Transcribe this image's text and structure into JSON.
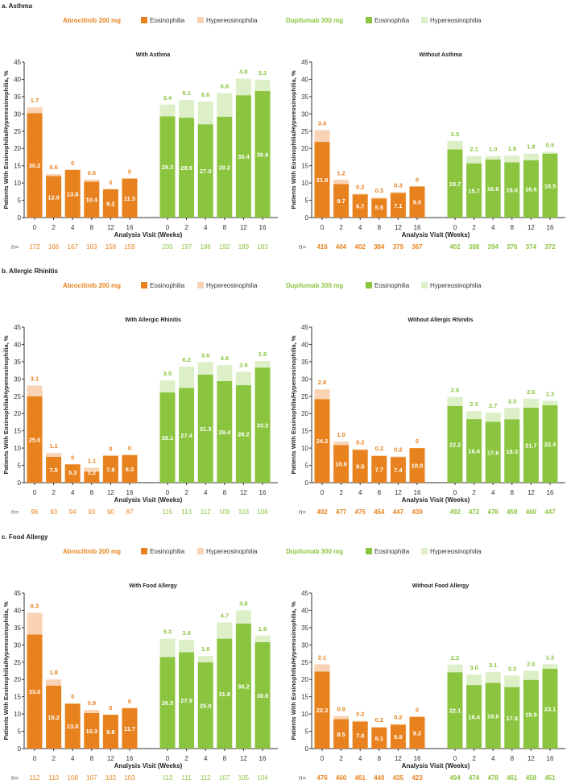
{
  "sections": [
    {
      "title": "a. Asthma"
    },
    {
      "title": "b. Allergic Rhinitis"
    },
    {
      "title": "c. Food Allergy"
    }
  ],
  "legend": {
    "abrocitinib": "Abrocitinib 200 mg",
    "dupilumab": "Dupilumab 300 mg",
    "eosinophilia": "Eosinophilia",
    "hypereosinophilia": "Hypereosinophilia"
  },
  "colors": {
    "abro_eos": "#E8821E",
    "abro_hyper": "#F9D3B4",
    "dupi_eos": "#8BC43F",
    "dupi_hyper": "#DDEFC7"
  },
  "chart_data": [
    {
      "type": "bar",
      "stacked": true,
      "title": "With Asthma",
      "xlabel": "Analysis Visit (Weeks)",
      "ylabel": "Patients With Eosinophilia/Hypereosinophilia, %",
      "ylim": [
        0,
        45
      ],
      "yticks": [
        0,
        5,
        10,
        15,
        20,
        25,
        30,
        35,
        40,
        45
      ],
      "categories": [
        "0",
        "2",
        "4",
        "8",
        "12",
        "16"
      ],
      "n_label": "n=",
      "series": [
        {
          "name": "Abrocitinib 200 mg",
          "eosinophilia": [
            30.2,
            12.0,
            13.8,
            10.4,
            8.2,
            11.3
          ],
          "hypereosinophilia": [
            1.7,
            0.6,
            0,
            0.6,
            0,
            0
          ],
          "n": [
            172,
            166,
            167,
            163,
            158,
            159
          ]
        },
        {
          "name": "Dupilumab 300 mg",
          "eosinophilia": [
            29.3,
            28.9,
            27.0,
            29.2,
            35.4,
            36.6
          ],
          "hypereosinophilia": [
            3.4,
            5.1,
            6.6,
            6.8,
            4.8,
            3.3
          ],
          "n": [
            205,
            197,
            196,
            192,
            189,
            183
          ]
        }
      ]
    },
    {
      "type": "bar",
      "stacked": true,
      "title": "Without Asthma",
      "xlabel": "Analysis Visit (Weeks)",
      "ylabel": "Patients With Eosinophilia/Hypereosinophilia, %",
      "ylim": [
        0,
        45
      ],
      "yticks": [
        0,
        5,
        10,
        15,
        20,
        25,
        30,
        35,
        40,
        45
      ],
      "categories": [
        "0",
        "2",
        "4",
        "8",
        "12",
        "16"
      ],
      "n_label": "n=",
      "series": [
        {
          "name": "Abrocitinib 200 mg",
          "eosinophilia": [
            21.9,
            9.7,
            6.7,
            5.5,
            7.1,
            9.0
          ],
          "hypereosinophilia": [
            3.4,
            1.2,
            0.2,
            0.3,
            0.3,
            0
          ],
          "n": [
            416,
            404,
            402,
            384,
            379,
            367
          ]
        },
        {
          "name": "Dupilumab 300 mg",
          "eosinophilia": [
            19.7,
            15.7,
            16.8,
            16.0,
            16.6,
            18.5
          ],
          "hypereosinophilia": [
            2.5,
            2.1,
            1.0,
            1.9,
            1.9,
            0.5
          ],
          "n": [
            402,
            388,
            394,
            376,
            374,
            372
          ]
        }
      ]
    },
    {
      "type": "bar",
      "stacked": true,
      "title": "With Allergic Rhinitis",
      "xlabel": "Analysis Visit (Weeks)",
      "ylabel": "Patients With Eosinophilia/Hypereosinophilia, %",
      "ylim": [
        0,
        45
      ],
      "yticks": [
        0,
        5,
        10,
        15,
        20,
        25,
        30,
        35,
        40,
        45
      ],
      "categories": [
        "0",
        "2",
        "4",
        "8",
        "12",
        "16"
      ],
      "n_label": "n=",
      "series": [
        {
          "name": "Abrocitinib 200 mg",
          "eosinophilia": [
            25.0,
            7.5,
            5.3,
            3.2,
            7.8,
            8.0
          ],
          "hypereosinophilia": [
            3.1,
            1.1,
            0,
            1.1,
            0,
            0
          ],
          "n": [
            96,
            93,
            94,
            93,
            90,
            87
          ]
        },
        {
          "name": "Dupilumab 300 mg",
          "eosinophilia": [
            26.1,
            27.4,
            31.3,
            29.4,
            28.2,
            33.3
          ],
          "hypereosinophilia": [
            3.5,
            6.2,
            3.6,
            4.6,
            3.9,
            1.9
          ],
          "n": [
            115,
            113,
            112,
            109,
            103,
            108
          ]
        }
      ]
    },
    {
      "type": "bar",
      "stacked": true,
      "title": "Without Allergic Rhinitis",
      "xlabel": "Analysis Visit (Weeks)",
      "ylabel": "Patients With Eosinophilia/Hypereosinophilia, %",
      "ylim": [
        0,
        45
      ],
      "yticks": [
        0,
        5,
        10,
        15,
        20,
        25,
        30,
        35,
        40,
        45
      ],
      "categories": [
        "0",
        "2",
        "4",
        "8",
        "12",
        "16"
      ],
      "n_label": "n=",
      "series": [
        {
          "name": "Abrocitinib 200 mg",
          "eosinophilia": [
            24.2,
            10.9,
            9.5,
            7.7,
            7.4,
            10.0
          ],
          "hypereosinophilia": [
            2.8,
            1.0,
            0.2,
            0.2,
            0.2,
            0
          ],
          "n": [
            492,
            477,
            475,
            454,
            447,
            439
          ]
        },
        {
          "name": "Dupilumab 300 mg",
          "eosinophilia": [
            22.2,
            18.4,
            17.6,
            18.3,
            21.7,
            22.4
          ],
          "hypereosinophilia": [
            2.6,
            2.3,
            2.7,
            3.3,
            2.6,
            1.3
          ],
          "n": [
            492,
            472,
            478,
            459,
            460,
            447
          ]
        }
      ]
    },
    {
      "type": "bar",
      "stacked": true,
      "title": "With Food Allergy",
      "xlabel": "Analysis Visit (Weeks)",
      "ylabel": "Patients With Eosinophilia/Hypereosinophilia, %",
      "ylim": [
        0,
        45
      ],
      "yticks": [
        0,
        5,
        10,
        15,
        20,
        25,
        30,
        35,
        40,
        45
      ],
      "categories": [
        "0",
        "2",
        "4",
        "8",
        "12",
        "16"
      ],
      "n_label": "n=",
      "series": [
        {
          "name": "Abrocitinib 200 mg",
          "eosinophilia": [
            33.0,
            18.2,
            13.0,
            10.3,
            9.8,
            11.7
          ],
          "hypereosinophilia": [
            6.3,
            1.8,
            0,
            0.9,
            0,
            0
          ],
          "n": [
            112,
            110,
            108,
            107,
            102,
            103
          ]
        },
        {
          "name": "Dupilumab 300 mg",
          "eosinophilia": [
            26.5,
            27.9,
            25.0,
            31.8,
            36.2,
            30.8
          ],
          "hypereosinophilia": [
            5.3,
            3.6,
            1.8,
            4.7,
            3.8,
            1.9
          ],
          "n": [
            113,
            111,
            112,
            107,
            105,
            104
          ]
        }
      ]
    },
    {
      "type": "bar",
      "stacked": true,
      "title": "Without Food Allergy",
      "xlabel": "Analysis Visit (Weeks)",
      "ylabel": "Patients With Eosinophilia/Hypereosinophilia, %",
      "ylim": [
        0,
        45
      ],
      "yticks": [
        0,
        5,
        10,
        15,
        20,
        25,
        30,
        35,
        40,
        45
      ],
      "categories": [
        "0",
        "2",
        "4",
        "8",
        "12",
        "16"
      ],
      "n_label": "n=",
      "series": [
        {
          "name": "Abrocitinib 200 mg",
          "eosinophilia": [
            22.3,
            8.5,
            7.8,
            6.1,
            6.9,
            9.2
          ],
          "hypereosinophilia": [
            2.1,
            0.9,
            0.2,
            0.2,
            0.2,
            0
          ],
          "n": [
            476,
            460,
            461,
            440,
            435,
            423
          ]
        },
        {
          "name": "Dupilumab 300 mg",
          "eosinophilia": [
            22.1,
            18.4,
            19.0,
            17.8,
            19.9,
            23.1
          ],
          "hypereosinophilia": [
            2.2,
            3.0,
            3.1,
            3.3,
            2.6,
            1.3
          ],
          "n": [
            494,
            474,
            478,
            461,
            458,
            451
          ]
        }
      ]
    }
  ]
}
